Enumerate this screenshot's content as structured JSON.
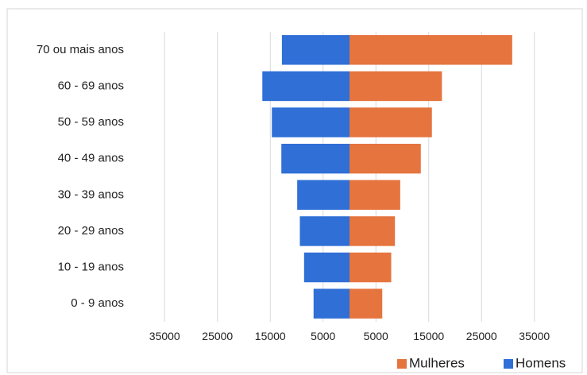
{
  "chart_data": {
    "type": "bar",
    "orientation": "horizontal",
    "layout": "population-pyramid",
    "categories": [
      "70 ou mais anos",
      "60 - 69 anos",
      "50 - 59 anos",
      "40 - 49 anos",
      "30 - 39 anos",
      "20 - 29 anos",
      "10 - 19 anos",
      "0 - 9 anos"
    ],
    "series": [
      {
        "name": "Homens",
        "side": "left",
        "color": "#2f6fd6",
        "values": [
          12800,
          16500,
          14700,
          12900,
          9900,
          9400,
          8600,
          6800
        ]
      },
      {
        "name": "Mulheres",
        "side": "right",
        "color": "#e5743e",
        "values": [
          30800,
          17500,
          15600,
          13500,
          9600,
          8600,
          7900,
          6200
        ]
      }
    ],
    "x_ticks": [
      "35000",
      "25000",
      "15000",
      "5000",
      "5000",
      "15000",
      "25000",
      "35000"
    ],
    "xlim": [
      -40000,
      40000
    ],
    "grid": true,
    "legend_position": "bottom-right",
    "legend_order": [
      "Mulheres",
      "Homens"
    ]
  }
}
